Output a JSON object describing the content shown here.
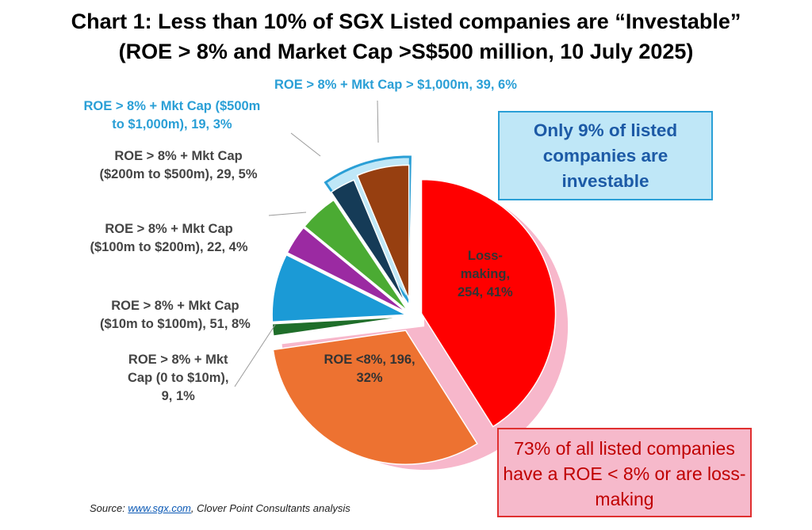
{
  "title_line1": "Chart 1: Less than 10% of SGX Listed companies are “Investable”",
  "title_line2": "(ROE > 8% and Market Cap >S$500 million, 10 July 2025)",
  "callout_investable": "Only 9% of listed companies are investable",
  "callout_loss": "73% of all listed companies have a ROE < 8% or are loss-making",
  "source_prefix": "Source: ",
  "source_link": "www.sgx.com",
  "source_suffix": ", Clover Point Consultants analysis",
  "colors": {
    "loss_making": "#ff0000",
    "roe_below_8": "#ed7231",
    "mc_0_10": "#1f6e2a",
    "mc_10_100": "#1b9ad6",
    "mc_100_200": "#9b2aa2",
    "mc_200_500": "#4bab33",
    "mc_500_1000": "#153b57",
    "mc_1000_plus": "#973f10",
    "investable_group_fill": "#bfe7f7",
    "investable_group_border": "#2a9fd6",
    "low_group_fill": "#f7b7cb",
    "callout_red": "#c00000"
  },
  "chart_data": {
    "type": "pie",
    "start_angle_deg": 0,
    "direction": "clockwise",
    "slices": [
      {
        "name": "Loss-making",
        "count": 254,
        "pct": 41,
        "label_lines": [
          "Loss-",
          "making,",
          "254, 41%"
        ],
        "color_key": "loss_making",
        "group": "low"
      },
      {
        "name": "ROE <8%",
        "count": 196,
        "pct": 32,
        "label_lines": [
          "ROE <8%, 196,",
          "32%"
        ],
        "color_key": "roe_below_8",
        "group": "low"
      },
      {
        "name": "ROE > 8% + Mkt Cap (0 to $10m)",
        "count": 9,
        "pct": 1,
        "label_lines": [
          "ROE > 8% + Mkt",
          "Cap (0 to $10m),",
          "9, 1%"
        ],
        "color_key": "mc_0_10",
        "group": "none"
      },
      {
        "name": "ROE > 8% + Mkt Cap ($10m to $100m)",
        "count": 51,
        "pct": 8,
        "label_lines": [
          "ROE > 8% + Mkt Cap",
          "($10m to $100m), 51, 8%"
        ],
        "color_key": "mc_10_100",
        "group": "none"
      },
      {
        "name": "ROE > 8% + Mkt Cap ($100m to $200m)",
        "count": 22,
        "pct": 4,
        "label_lines": [
          "ROE > 8% + Mkt Cap",
          "($100m to $200m), 22, 4%"
        ],
        "color_key": "mc_100_200",
        "group": "none"
      },
      {
        "name": "ROE > 8% + Mkt Cap ($200m to $500m)",
        "count": 29,
        "pct": 5,
        "label_lines": [
          "ROE > 8% + Mkt Cap",
          "($200m to $500m), 29, 5%"
        ],
        "color_key": "mc_200_500",
        "group": "none"
      },
      {
        "name": "ROE > 8% + Mkt Cap ($500m to $1,000m)",
        "count": 19,
        "pct": 3,
        "label_lines": [
          "ROE > 8% + Mkt Cap ($500m",
          "to $1,000m), 19, 3%"
        ],
        "color_key": "mc_500_1000",
        "group": "investable"
      },
      {
        "name": "ROE > 8% + Mkt Cap > $1,000m",
        "count": 39,
        "pct": 6,
        "label_lines": [
          "ROE >  8% + Mkt Cap > $1,000m, 39, 6%"
        ],
        "color_key": "mc_1000_plus",
        "group": "investable"
      }
    ]
  }
}
